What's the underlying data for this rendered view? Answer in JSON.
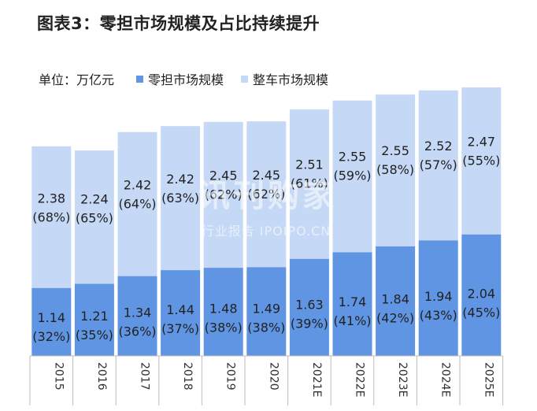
{
  "title": "图表3：零担市场规模及占比持续提升",
  "legend": {
    "unit": "单位：万亿元",
    "items": [
      "零担市场规模",
      "整车市场规模"
    ]
  },
  "colors": {
    "ltl": "#5f95e3",
    "ftl": "#c5d8f5"
  },
  "watermark": {
    "main": "讯刊购家",
    "sub": "行业报告 IPOIPO.CN"
  },
  "chart_data": {
    "type": "bar",
    "stacked": true,
    "categories": [
      "2015",
      "2016",
      "2017",
      "2018",
      "2019",
      "2020",
      "2021E",
      "2022E",
      "2023E",
      "2024E",
      "2025E"
    ],
    "series": [
      {
        "name": "零担市场规模",
        "values": [
          1.14,
          1.21,
          1.34,
          1.44,
          1.48,
          1.49,
          1.63,
          1.74,
          1.84,
          1.94,
          2.04
        ],
        "shares": [
          "(32%)",
          "(35%)",
          "(36%)",
          "(37%)",
          "(38%)",
          "(38%)",
          "(39%)",
          "(41%)",
          "(42%)",
          "(43%)",
          "(45%)"
        ]
      },
      {
        "name": "整车市场规模",
        "values": [
          2.38,
          2.24,
          2.42,
          2.42,
          2.45,
          2.45,
          2.51,
          2.55,
          2.55,
          2.52,
          2.47
        ],
        "shares": [
          "(68%)",
          "(65%)",
          "(64%)",
          "(63%)",
          "(62%)",
          "(62%)",
          "(61%)",
          "(59%)",
          "(58%)",
          "(57%)",
          "(55%)"
        ]
      }
    ],
    "ylim": [
      0,
      4.55
    ],
    "xlabel": "",
    "ylabel": ""
  }
}
